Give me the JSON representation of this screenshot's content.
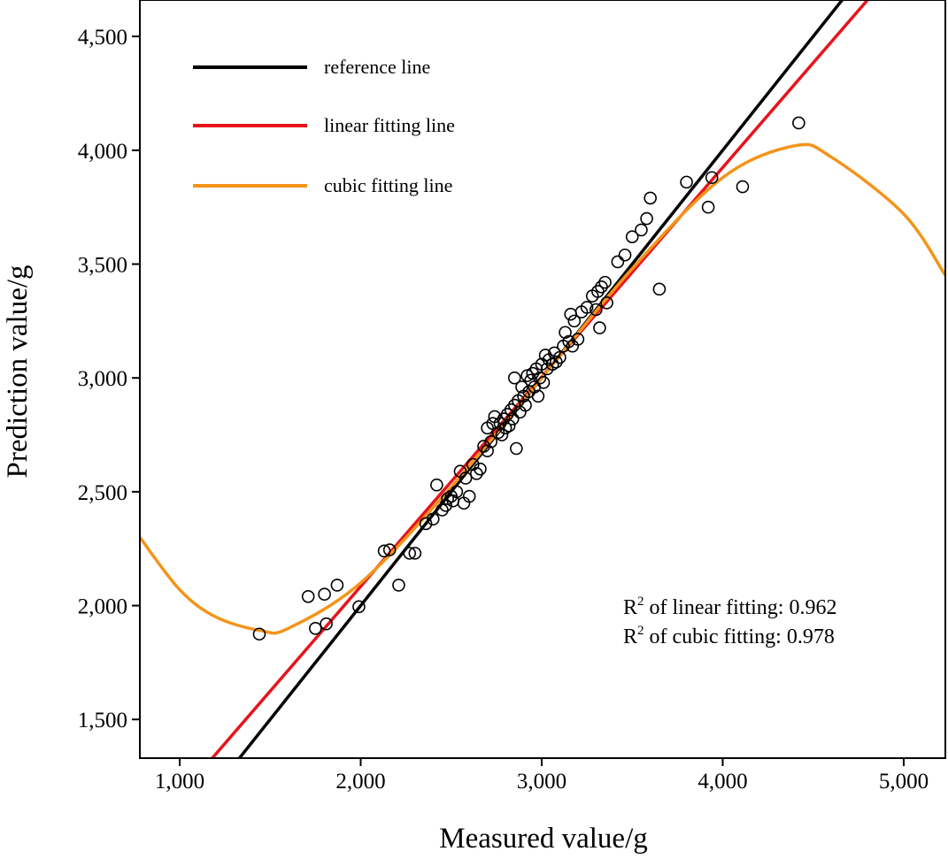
{
  "chart_data": {
    "type": "scatter",
    "xlabel": "Measured value/g",
    "ylabel": "Prediction value/g",
    "xlim": [
      780,
      5230
    ],
    "ylim": [
      1330,
      4660
    ],
    "xticks": [
      1000,
      2000,
      3000,
      4000,
      5000
    ],
    "xtick_labels": [
      "1,000",
      "2,000",
      "3,000",
      "4,000",
      "5,000"
    ],
    "yticks": [
      1500,
      2000,
      2500,
      3000,
      3500,
      4000,
      4500
    ],
    "ytick_labels": [
      "1,500",
      "2,000",
      "2,500",
      "3,000",
      "3,500",
      "4,000",
      "4,500"
    ],
    "grid": false,
    "legend_position": "top-left",
    "legend": [
      {
        "label": "reference line",
        "color": "#000000"
      },
      {
        "label": "linear fitting line",
        "color": "#e8131b"
      },
      {
        "label": "cubic fitting line",
        "color": "#f39419"
      }
    ],
    "annotations": {
      "linear": {
        "prefix": "R",
        "sup": "2",
        "suffix": " of linear fitting: 0.962"
      },
      "cubic": {
        "prefix": "R",
        "sup": "2",
        "suffix": " of cubic fitting: 0.978"
      }
    },
    "lines": {
      "reference": {
        "color": "#000000",
        "slope": 1,
        "intercept": 0
      },
      "linear": {
        "color": "#e8131b",
        "points": [
          [
            1180,
            1330
          ],
          [
            4800,
            4660
          ]
        ]
      },
      "cubic": {
        "color": "#f39419",
        "points": [
          [
            780,
            2300
          ],
          [
            1000,
            2070
          ],
          [
            1200,
            1950
          ],
          [
            1450,
            1890
          ],
          [
            1600,
            1900
          ],
          [
            2000,
            2100
          ],
          [
            2500,
            2520
          ],
          [
            3000,
            3000
          ],
          [
            3500,
            3480
          ],
          [
            4000,
            3880
          ],
          [
            4400,
            4020
          ],
          [
            4600,
            3970
          ],
          [
            5000,
            3720
          ],
          [
            5230,
            3450
          ]
        ]
      }
    },
    "points": [
      [
        1440,
        1875
      ],
      [
        1710,
        2040
      ],
      [
        1750,
        1900
      ],
      [
        1800,
        2050
      ],
      [
        1810,
        1920
      ],
      [
        1870,
        2090
      ],
      [
        1990,
        1995
      ],
      [
        2130,
        2240
      ],
      [
        2160,
        2245
      ],
      [
        2210,
        2090
      ],
      [
        2270,
        2230
      ],
      [
        2300,
        2230
      ],
      [
        2360,
        2360
      ],
      [
        2400,
        2380
      ],
      [
        2420,
        2530
      ],
      [
        2450,
        2420
      ],
      [
        2470,
        2440
      ],
      [
        2480,
        2470
      ],
      [
        2500,
        2480
      ],
      [
        2510,
        2460
      ],
      [
        2530,
        2500
      ],
      [
        2550,
        2590
      ],
      [
        2570,
        2450
      ],
      [
        2580,
        2560
      ],
      [
        2600,
        2480
      ],
      [
        2620,
        2620
      ],
      [
        2640,
        2580
      ],
      [
        2660,
        2600
      ],
      [
        2680,
        2700
      ],
      [
        2700,
        2680
      ],
      [
        2700,
        2780
      ],
      [
        2720,
        2720
      ],
      [
        2730,
        2800
      ],
      [
        2740,
        2830
      ],
      [
        2760,
        2760
      ],
      [
        2770,
        2800
      ],
      [
        2780,
        2750
      ],
      [
        2790,
        2820
      ],
      [
        2800,
        2780
      ],
      [
        2810,
        2840
      ],
      [
        2820,
        2790
      ],
      [
        2830,
        2860
      ],
      [
        2840,
        2820
      ],
      [
        2850,
        3000
      ],
      [
        2850,
        2880
      ],
      [
        2860,
        2690
      ],
      [
        2870,
        2900
      ],
      [
        2880,
        2850
      ],
      [
        2890,
        2960
      ],
      [
        2900,
        2920
      ],
      [
        2910,
        2880
      ],
      [
        2920,
        3010
      ],
      [
        2930,
        2940
      ],
      [
        2940,
        2990
      ],
      [
        2950,
        3020
      ],
      [
        2960,
        2960
      ],
      [
        2970,
        3040
      ],
      [
        2980,
        2920
      ],
      [
        2990,
        3000
      ],
      [
        3000,
        3060
      ],
      [
        3010,
        2980
      ],
      [
        3020,
        3100
      ],
      [
        3030,
        3040
      ],
      [
        3040,
        3080
      ],
      [
        3060,
        3060
      ],
      [
        3070,
        3110
      ],
      [
        3080,
        3070
      ],
      [
        3100,
        3090
      ],
      [
        3120,
        3140
      ],
      [
        3130,
        3200
      ],
      [
        3150,
        3160
      ],
      [
        3160,
        3280
      ],
      [
        3170,
        3140
      ],
      [
        3180,
        3250
      ],
      [
        3200,
        3170
      ],
      [
        3220,
        3290
      ],
      [
        3250,
        3310
      ],
      [
        3280,
        3360
      ],
      [
        3300,
        3300
      ],
      [
        3310,
        3380
      ],
      [
        3320,
        3220
      ],
      [
        3330,
        3400
      ],
      [
        3350,
        3420
      ],
      [
        3360,
        3330
      ],
      [
        3420,
        3510
      ],
      [
        3460,
        3540
      ],
      [
        3500,
        3620
      ],
      [
        3550,
        3650
      ],
      [
        3580,
        3700
      ],
      [
        3600,
        3790
      ],
      [
        3650,
        3390
      ],
      [
        3800,
        3860
      ],
      [
        3920,
        3750
      ],
      [
        3940,
        3880
      ],
      [
        4110,
        3840
      ],
      [
        4420,
        4120
      ]
    ]
  }
}
